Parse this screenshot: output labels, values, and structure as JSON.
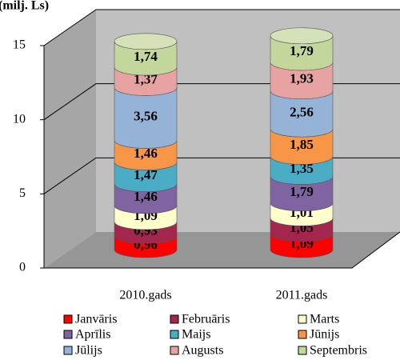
{
  "chart_data": {
    "type": "bar",
    "stacked": true,
    "three_d": true,
    "title": "(milj. Ls)",
    "categories": [
      "2010.gads",
      "2011.gads"
    ],
    "series": [
      {
        "name": "Janvāris",
        "color": "#ff0000",
        "values": [
          0.96,
          1.09
        ],
        "value_labels": [
          "0,96",
          "1,09"
        ]
      },
      {
        "name": "Februāris",
        "color": "#a3264f",
        "values": [
          0.93,
          1.05
        ],
        "value_labels": [
          "0,93",
          "1,05"
        ]
      },
      {
        "name": "Marts",
        "color": "#ffffcc",
        "values": [
          1.09,
          1.01
        ],
        "value_labels": [
          "1,09",
          "1,01"
        ]
      },
      {
        "name": "Aprīlis",
        "color": "#8064a2",
        "values": [
          1.46,
          1.79
        ],
        "value_labels": [
          "1,46",
          "1,79"
        ]
      },
      {
        "name": "Maijs",
        "color": "#4bacc6",
        "values": [
          1.47,
          1.35
        ],
        "value_labels": [
          "1,47",
          "1,35"
        ]
      },
      {
        "name": "Jūnijs",
        "color": "#f79646",
        "values": [
          1.46,
          1.85
        ],
        "value_labels": [
          "1,46",
          "1,85"
        ]
      },
      {
        "name": "Jūlijs",
        "color": "#95b3d7",
        "values": [
          3.56,
          2.56
        ],
        "value_labels": [
          "3,56",
          "2,56"
        ]
      },
      {
        "name": "Augusts",
        "color": "#e6a3a1",
        "values": [
          1.37,
          1.93
        ],
        "value_labels": [
          "1,37",
          "1,93"
        ]
      },
      {
        "name": "Septembris",
        "color": "#c3d69b",
        "values": [
          1.74,
          1.79
        ],
        "value_labels": [
          "1,74",
          "1,79"
        ]
      }
    ],
    "ylim": [
      0,
      15
    ],
    "yticks": [
      0,
      5,
      10,
      15
    ],
    "grid": true,
    "legend": "bottom"
  }
}
